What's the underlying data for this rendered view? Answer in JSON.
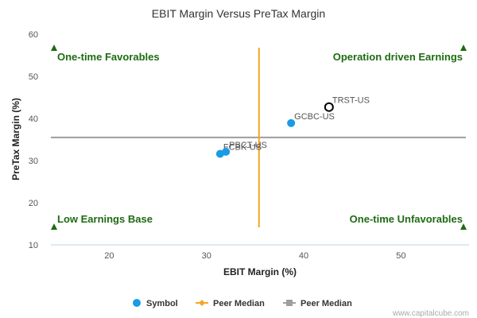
{
  "chart_data": {
    "type": "scatter",
    "title": "EBIT Margin Versus PreTax Margin",
    "xlabel": "EBIT Margin (%)",
    "ylabel": "PreTax Margin (%)",
    "xlim": [
      14,
      57
    ],
    "ylim": [
      10,
      60
    ],
    "x_ticks": [
      20,
      30,
      40,
      50
    ],
    "y_ticks": [
      10,
      20,
      30,
      40,
      50,
      60
    ],
    "grid": false,
    "points": [
      {
        "label": "FCBK-US",
        "x": 31.4,
        "y": 31.6,
        "highlight": false
      },
      {
        "label": "PBCT-US",
        "x": 32.0,
        "y": 32.1,
        "highlight": false
      },
      {
        "label": "GCBC-US",
        "x": 38.7,
        "y": 38.9,
        "highlight": false
      },
      {
        "label": "TRST-US",
        "x": 42.6,
        "y": 42.7,
        "highlight": true
      }
    ],
    "peer_median_x": 35.4,
    "peer_median_y": 35.5,
    "quadrant_labels": {
      "top_left": "One-time Favorables",
      "top_right": "Operation driven Earnings",
      "bottom_left": "Low Earnings Base",
      "bottom_right": "One-time Unfavorables"
    },
    "legend": {
      "placement": "bottom",
      "items": [
        {
          "label": "Symbol",
          "kind": "dot",
          "color": "#1a9be6"
        },
        {
          "label": "Peer Median",
          "kind": "line-diamond",
          "color": "#f5a623"
        },
        {
          "label": "Peer Median",
          "kind": "line-square",
          "color": "#9e9e9e"
        }
      ]
    },
    "colors": {
      "point": "#1a9be6",
      "highlight_stroke": "#000000",
      "median_x_line": "#f5a623",
      "median_y_line": "#9e9e9e",
      "quadrant_text": "#1e6b12",
      "axis_line": "#b8d6e0"
    }
  },
  "watermark": "www.capitalcube.com"
}
